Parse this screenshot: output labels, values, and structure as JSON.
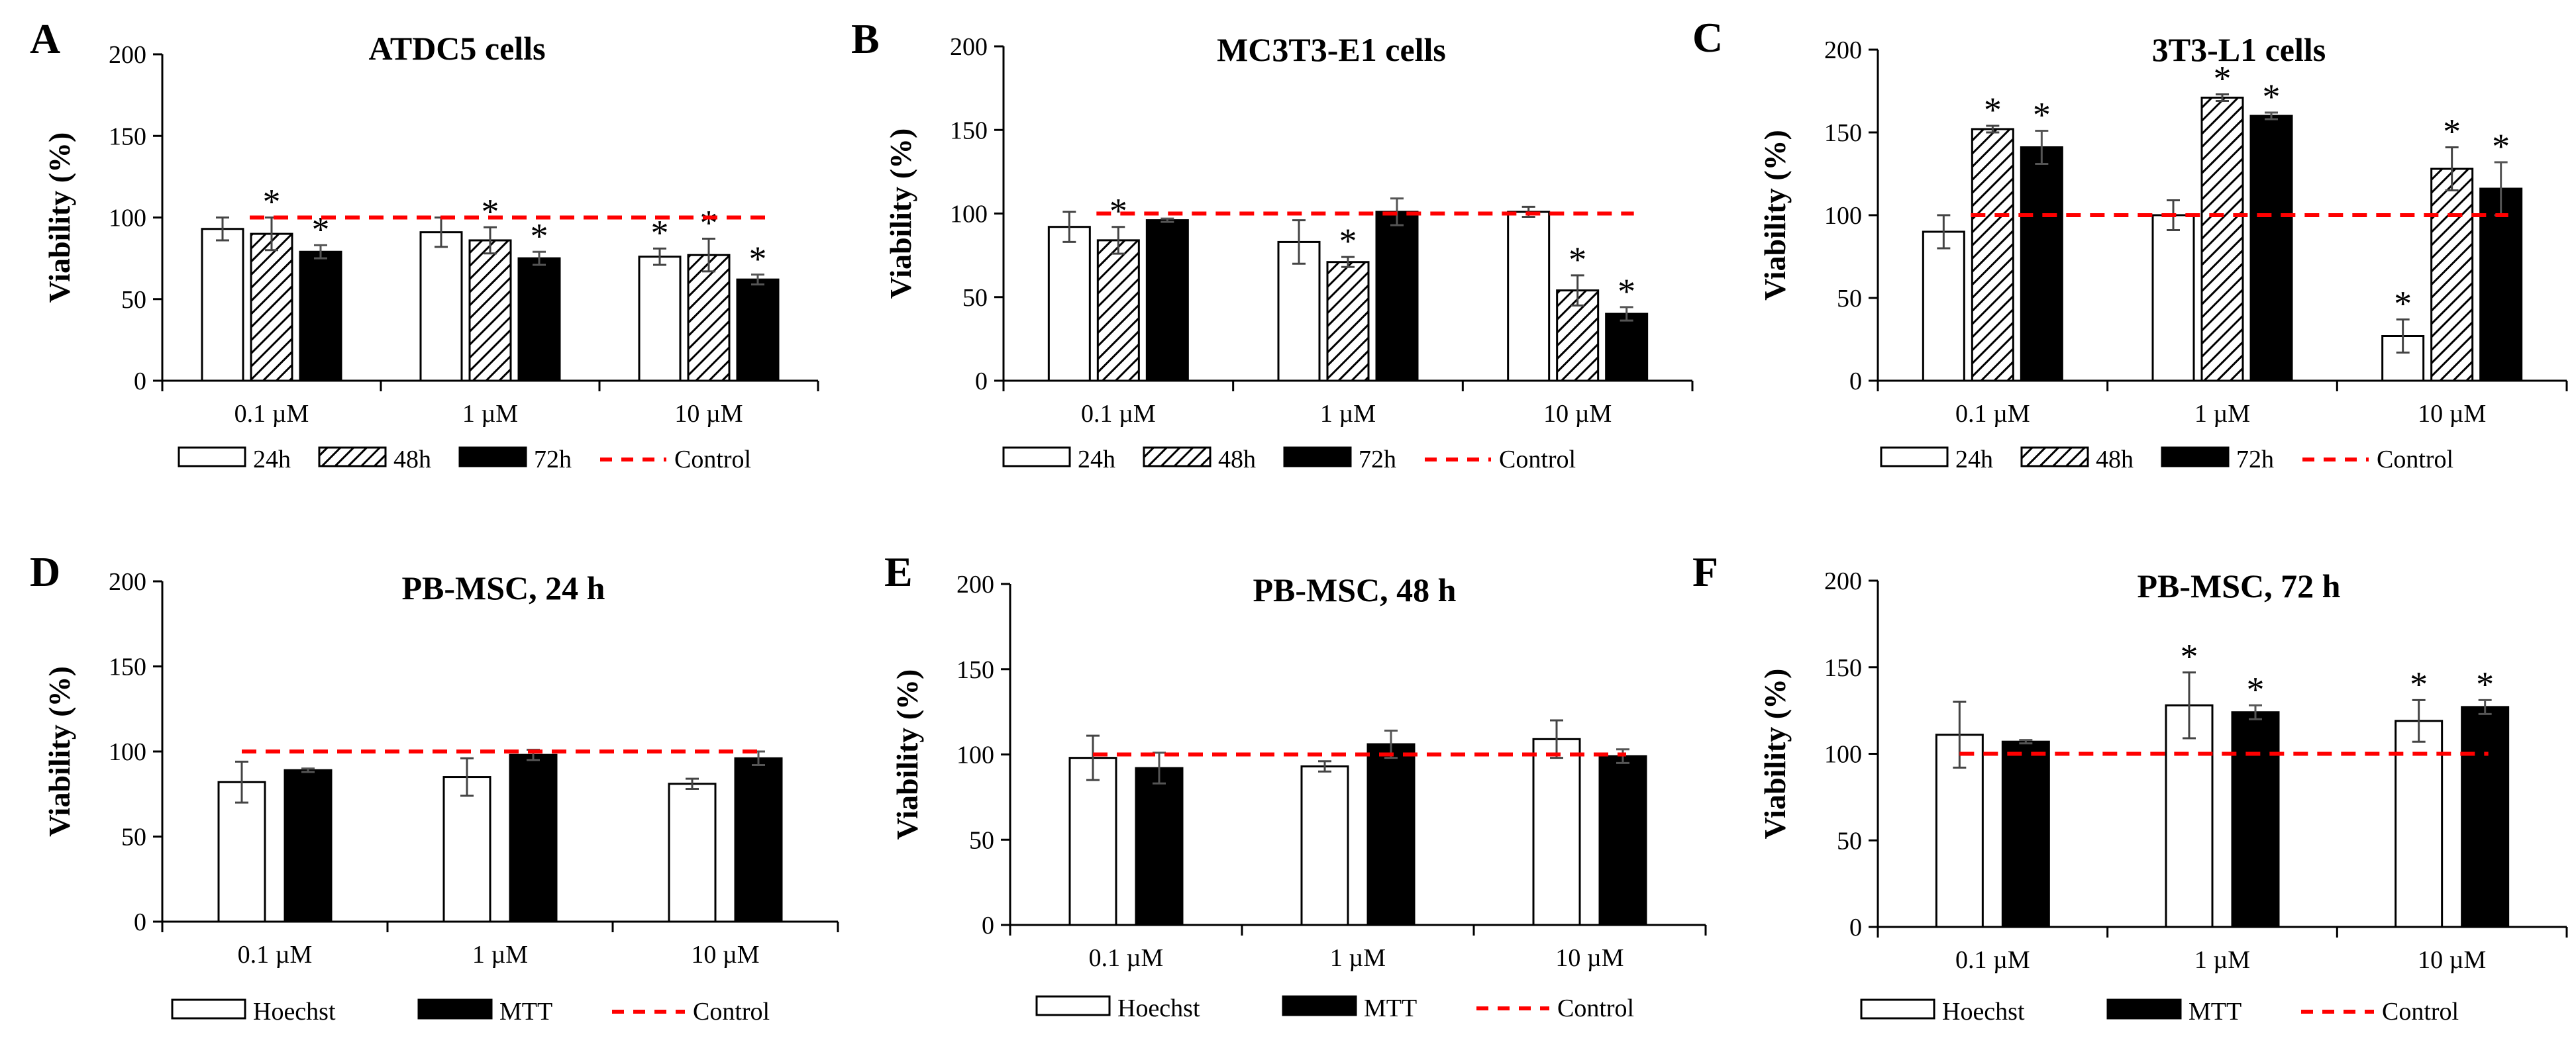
{
  "chart_data": [
    {
      "panel": "A",
      "type": "bar",
      "title": "ATDC5 cells",
      "ylabel": "Viability (%)",
      "ylim": [
        0,
        200
      ],
      "yticks": [
        0,
        50,
        100,
        150,
        200
      ],
      "categories": [
        "0.1 µM",
        "1 µM",
        "10 µM"
      ],
      "control": 100,
      "series": [
        {
          "name": "24h",
          "style": "white",
          "values": [
            93,
            91,
            76
          ],
          "errors": [
            7,
            9,
            5
          ],
          "sig": [
            false,
            false,
            true
          ]
        },
        {
          "name": "48h",
          "style": "hatch",
          "values": [
            90,
            86,
            77
          ],
          "errors": [
            10,
            8,
            10
          ],
          "sig": [
            true,
            true,
            true
          ]
        },
        {
          "name": "72h",
          "style": "black",
          "values": [
            79,
            75,
            62
          ],
          "errors": [
            4,
            4,
            3
          ],
          "sig": [
            true,
            true,
            true
          ]
        }
      ],
      "legend": [
        {
          "label": "24h",
          "style": "white"
        },
        {
          "label": "48h",
          "style": "hatch"
        },
        {
          "label": "72h",
          "style": "black"
        },
        {
          "label": "Control",
          "style": "dash"
        }
      ]
    },
    {
      "panel": "B",
      "type": "bar",
      "title": "MC3T3-E1 cells",
      "ylabel": "Viability (%)",
      "ylim": [
        0,
        200
      ],
      "yticks": [
        0,
        50,
        100,
        150,
        200
      ],
      "categories": [
        "0.1 µM",
        "1 µM",
        "10 µM"
      ],
      "control": 100,
      "series": [
        {
          "name": "24h",
          "style": "white",
          "values": [
            92,
            83,
            101
          ],
          "errors": [
            9,
            13,
            3
          ],
          "sig": [
            false,
            false,
            false
          ]
        },
        {
          "name": "48h",
          "style": "hatch",
          "values": [
            84,
            71,
            54
          ],
          "errors": [
            8,
            3,
            9
          ],
          "sig": [
            true,
            true,
            true
          ]
        },
        {
          "name": "72h",
          "style": "black",
          "values": [
            96,
            101,
            40
          ],
          "errors": [
            1,
            8,
            4
          ],
          "sig": [
            false,
            false,
            true
          ]
        }
      ],
      "legend": [
        {
          "label": "24h",
          "style": "white"
        },
        {
          "label": "48h",
          "style": "hatch"
        },
        {
          "label": "72h",
          "style": "black"
        },
        {
          "label": "Control",
          "style": "dash"
        }
      ]
    },
    {
      "panel": "C",
      "type": "bar",
      "title": "3T3-L1 cells",
      "ylabel": "Viability (%)",
      "ylim": [
        0,
        200
      ],
      "yticks": [
        0,
        50,
        100,
        150,
        200
      ],
      "categories": [
        "0.1 µM",
        "1 µM",
        "10 µM"
      ],
      "control": 100,
      "series": [
        {
          "name": "24h",
          "style": "white",
          "values": [
            90,
            100,
            27
          ],
          "errors": [
            10,
            9,
            10
          ],
          "sig": [
            false,
            false,
            true
          ]
        },
        {
          "name": "48h",
          "style": "hatch",
          "values": [
            152,
            171,
            128
          ],
          "errors": [
            2,
            2,
            13
          ],
          "sig": [
            true,
            true,
            true
          ]
        },
        {
          "name": "72h",
          "style": "black",
          "values": [
            141,
            160,
            116
          ],
          "errors": [
            10,
            2,
            16
          ],
          "sig": [
            true,
            true,
            true
          ]
        }
      ],
      "legend": [
        {
          "label": "24h",
          "style": "white"
        },
        {
          "label": "48h",
          "style": "hatch"
        },
        {
          "label": "72h",
          "style": "black"
        },
        {
          "label": "Control",
          "style": "dash"
        }
      ]
    },
    {
      "panel": "D",
      "type": "bar",
      "title": "PB-MSC, 24 h",
      "ylabel": "Viability (%)",
      "ylim": [
        0,
        200
      ],
      "yticks": [
        0,
        50,
        100,
        150,
        200
      ],
      "categories": [
        "0.1 µM",
        "1 µM",
        "10 µM"
      ],
      "control": 100,
      "series": [
        {
          "name": "Hoechst",
          "style": "white",
          "values": [
            82,
            85,
            81
          ],
          "errors": [
            12,
            11,
            3
          ],
          "sig": [
            false,
            false,
            false
          ]
        },
        {
          "name": "MTT",
          "style": "black",
          "values": [
            89,
            98,
            96
          ],
          "errors": [
            1,
            3,
            4
          ],
          "sig": [
            false,
            false,
            false
          ]
        }
      ],
      "legend": [
        {
          "label": "Hoechst",
          "style": "white"
        },
        {
          "label": "MTT",
          "style": "black"
        },
        {
          "label": "Control",
          "style": "dash"
        }
      ]
    },
    {
      "panel": "E",
      "type": "bar",
      "title": "PB-MSC, 48 h",
      "ylabel": "Viability (%)",
      "ylim": [
        0,
        200
      ],
      "yticks": [
        0,
        50,
        100,
        150,
        200
      ],
      "categories": [
        "0.1 µM",
        "1 µM",
        "10 µM"
      ],
      "control": 100,
      "series": [
        {
          "name": "Hoechst",
          "style": "white",
          "values": [
            98,
            93,
            109
          ],
          "errors": [
            13,
            3,
            11
          ],
          "sig": [
            false,
            false,
            false
          ]
        },
        {
          "name": "MTT",
          "style": "black",
          "values": [
            92,
            106,
            99
          ],
          "errors": [
            9,
            8,
            4
          ],
          "sig": [
            false,
            false,
            false
          ]
        }
      ],
      "legend": [
        {
          "label": "Hoechst",
          "style": "white"
        },
        {
          "label": "MTT",
          "style": "black"
        },
        {
          "label": "Control",
          "style": "dash"
        }
      ]
    },
    {
      "panel": "F",
      "type": "bar",
      "title": "PB-MSC, 72 h",
      "ylabel": "Viability (%)",
      "ylim": [
        0,
        200
      ],
      "yticks": [
        0,
        50,
        100,
        150,
        200
      ],
      "categories": [
        "0.1 µM",
        "1 µM",
        "10 µM"
      ],
      "control": 100,
      "series": [
        {
          "name": "Hoechst",
          "style": "white",
          "values": [
            111,
            128,
            119
          ],
          "errors": [
            19,
            19,
            12
          ],
          "sig": [
            false,
            true,
            true
          ]
        },
        {
          "name": "MTT",
          "style": "black",
          "values": [
            107,
            124,
            127
          ],
          "errors": [
            1,
            4,
            4
          ],
          "sig": [
            false,
            true,
            true
          ]
        }
      ],
      "legend": [
        {
          "label": "Hoechst",
          "style": "white"
        },
        {
          "label": "MTT",
          "style": "black"
        },
        {
          "label": "Control",
          "style": "dash"
        }
      ]
    }
  ],
  "colors": {
    "control_line": "#ff0000",
    "bar_black": "#000000",
    "bar_white": "#ffffff",
    "axis": "#000000"
  },
  "sig_marker": "*"
}
